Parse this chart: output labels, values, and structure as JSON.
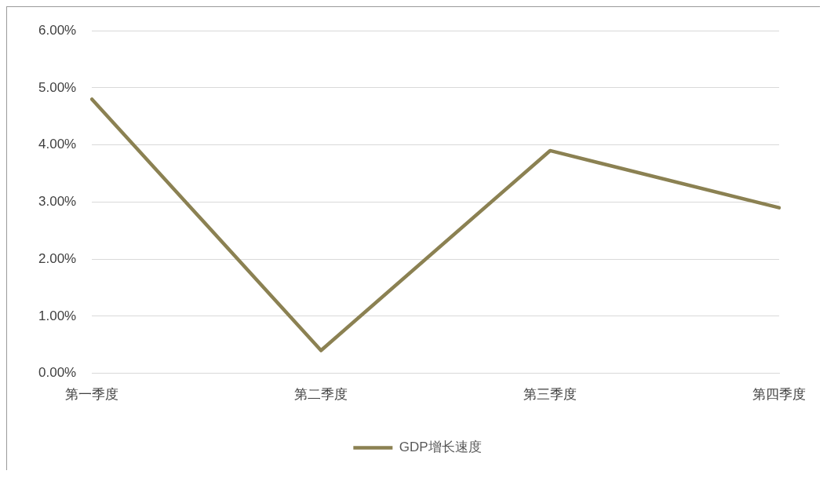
{
  "chart_data": {
    "type": "line",
    "categories": [
      "第一季度",
      "第二季度",
      "第三季度",
      "第四季度"
    ],
    "series": [
      {
        "name": "GDP增长速度",
        "color": "#8b8152",
        "values": [
          4.8,
          0.4,
          3.9,
          2.9
        ]
      }
    ],
    "ylim": [
      0,
      6
    ],
    "yticks": [
      {
        "value": 0,
        "label": "0.00%"
      },
      {
        "value": 1,
        "label": "1.00%"
      },
      {
        "value": 2,
        "label": "2.00%"
      },
      {
        "value": 3,
        "label": "3.00%"
      },
      {
        "value": 4,
        "label": "4.00%"
      },
      {
        "value": 5,
        "label": "5.00%"
      },
      {
        "value": 6,
        "label": "6.00%"
      }
    ],
    "grid": "y",
    "legend": "bottom",
    "marker": "none",
    "line_style": "solid"
  }
}
